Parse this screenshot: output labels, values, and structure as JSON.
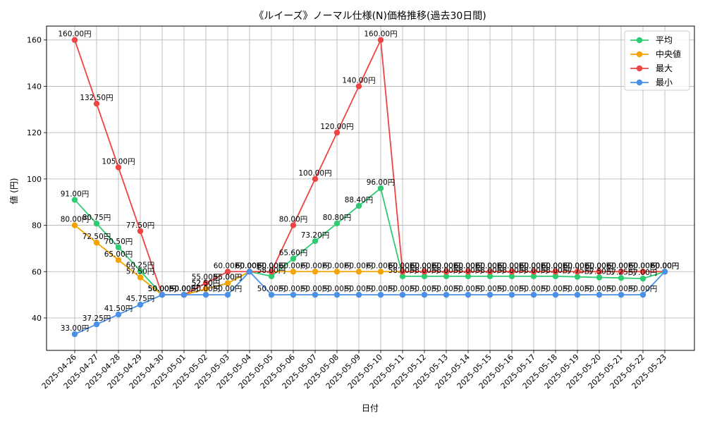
{
  "chart_data": {
    "type": "line",
    "title": "《ルイーズ》ノーマル仕様(N)価格推移(過去30日間)",
    "xlabel": "日付",
    "ylabel": "値 (円)",
    "ylim": [
      26,
      166
    ],
    "yticks": [
      40,
      60,
      80,
      100,
      120,
      140,
      160
    ],
    "grid": true,
    "legend_position": "top-right",
    "label_suffix": "円",
    "categories": [
      "2025-04-26",
      "2025-04-27",
      "2025-04-28",
      "2025-04-29",
      "2025-04-30",
      "2025-05-01",
      "2025-05-02",
      "2025-05-03",
      "2025-05-04",
      "2025-05-05",
      "2025-05-06",
      "2025-05-07",
      "2025-05-08",
      "2025-05-09",
      "2025-05-10",
      "2025-05-11",
      "2025-05-12",
      "2025-05-13",
      "2025-05-14",
      "2025-05-15",
      "2025-05-16",
      "2025-05-17",
      "2025-05-18",
      "2025-05-19",
      "2025-05-20",
      "2025-05-21",
      "2025-05-22",
      "2025-05-23"
    ],
    "series": [
      {
        "name": "平均",
        "color": "#2ecc71",
        "values": [
          91.0,
          80.75,
          70.5,
          60.25,
          50.0,
          50.0,
          52.5,
          55.0,
          60.0,
          58.0,
          65.6,
          73.2,
          80.8,
          88.4,
          96.0,
          58.0,
          58.0,
          58.0,
          58.0,
          58.0,
          58.0,
          58.0,
          58.0,
          57.75,
          57.5,
          57.25,
          57.0,
          60.0
        ]
      },
      {
        "name": "中央値",
        "color": "#f5a300",
        "values": [
          80.0,
          72.5,
          65.0,
          57.5,
          50.0,
          50.0,
          52.5,
          55.0,
          60.0,
          60.0,
          60.0,
          60.0,
          60.0,
          60.0,
          60.0,
          60.0,
          60.0,
          60.0,
          60.0,
          60.0,
          60.0,
          60.0,
          60.0,
          60.0,
          60.0,
          60.0,
          60.0,
          60.0
        ]
      },
      {
        "name": "最大",
        "color": "#ef4444",
        "values": [
          160.0,
          132.5,
          105.0,
          77.5,
          50.0,
          50.0,
          55.0,
          60.0,
          60.0,
          60.0,
          80.0,
          100.0,
          120.0,
          140.0,
          160.0,
          60.0,
          60.0,
          60.0,
          60.0,
          60.0,
          60.0,
          60.0,
          60.0,
          60.0,
          60.0,
          60.0,
          60.0,
          60.0
        ]
      },
      {
        "name": "最小",
        "color": "#4a90e8",
        "values": [
          33.0,
          37.25,
          41.5,
          45.75,
          50.0,
          50.0,
          50.0,
          50.0,
          60.0,
          50.0,
          50.0,
          50.0,
          50.0,
          50.0,
          50.0,
          50.0,
          50.0,
          50.0,
          50.0,
          50.0,
          50.0,
          50.0,
          50.0,
          50.0,
          50.0,
          50.0,
          50.0,
          60.0
        ]
      }
    ]
  }
}
